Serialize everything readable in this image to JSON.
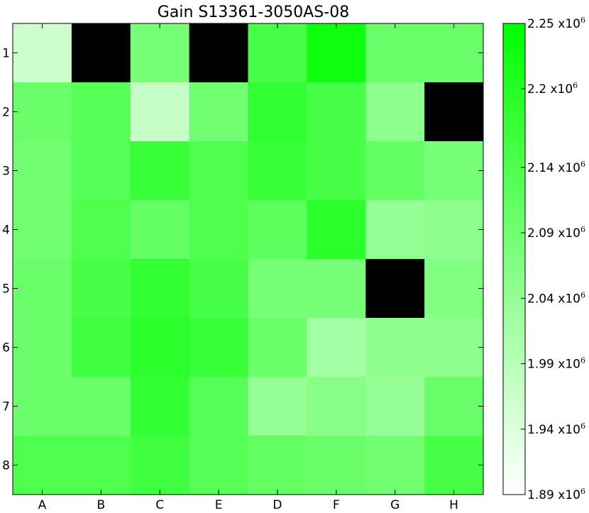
{
  "chart_data": {
    "type": "heatmap",
    "title": "Gain S13361-3050AS-08",
    "xlabel": "",
    "ylabel": "",
    "x_categories": [
      "A",
      "B",
      "C",
      "E",
      "D",
      "F",
      "G",
      "H"
    ],
    "y_categories": [
      "1",
      "2",
      "3",
      "4",
      "5",
      "6",
      "7",
      "8"
    ],
    "values": [
      [
        1.96,
        null,
        2.08,
        null,
        2.15,
        2.23,
        2.1,
        2.1
      ],
      [
        2.1,
        2.13,
        1.97,
        2.09,
        2.18,
        2.15,
        2.05,
        null
      ],
      [
        2.09,
        2.13,
        2.17,
        2.14,
        2.17,
        2.15,
        2.11,
        2.08
      ],
      [
        2.09,
        2.14,
        2.11,
        2.14,
        2.12,
        2.19,
        2.04,
        2.05
      ],
      [
        2.1,
        2.15,
        2.18,
        2.15,
        2.08,
        2.08,
        null,
        2.07
      ],
      [
        2.1,
        2.16,
        2.19,
        2.17,
        2.1,
        2.02,
        2.05,
        2.05
      ],
      [
        2.1,
        2.1,
        2.18,
        2.13,
        2.04,
        2.06,
        2.04,
        2.1
      ],
      [
        2.14,
        2.14,
        2.16,
        2.13,
        2.11,
        2.1,
        2.09,
        2.15
      ]
    ],
    "missing_color": "#000000",
    "colorscale": {
      "low": "#ffffff",
      "high": "#00ff00",
      "min": 1.89,
      "max": 2.25
    },
    "colorbar": {
      "ticks": [
        1.89,
        1.94,
        1.99,
        2.04,
        2.09,
        2.14,
        2.2,
        2.25
      ],
      "tick_labels": [
        "1.89",
        "1.94",
        "1.99",
        "2.04",
        "2.09",
        "2.14",
        "2.2",
        "2.25"
      ],
      "multiplier": "x10",
      "exponent": "6"
    }
  }
}
